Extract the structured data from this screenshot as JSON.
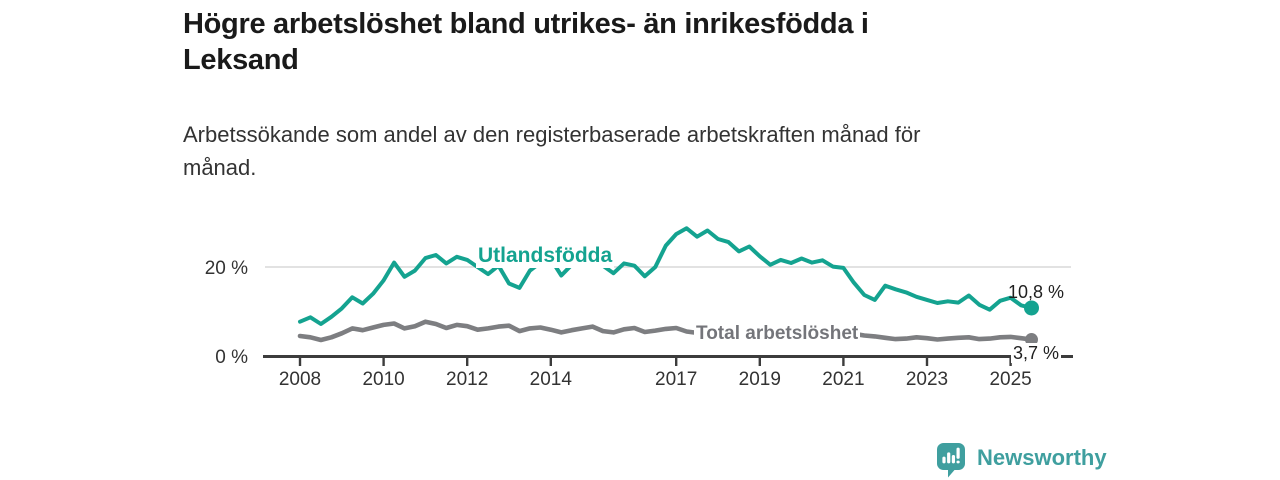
{
  "chart_data": {
    "type": "line",
    "title": "Högre arbetslöshet bland utrikes- än inrikesfödda i Leksand",
    "title_lines": [
      "Högre arbetslöshet bland utrikes- än inrikesfödda i",
      "Leksand"
    ],
    "subtitle": "Arbetssökande som andel av den registerbaserade arbetskraften månad för månad.",
    "subtitle_lines": [
      "Arbetssökande som andel av den registerbaserade arbetskraften månad för",
      "månad."
    ],
    "xlabel": "",
    "ylabel": "",
    "x_unit": "decimal year (monthly series, sampled quarterly)",
    "x_ticks": [
      2008,
      2010,
      2012,
      2014,
      2017,
      2019,
      2021,
      2023,
      2025
    ],
    "y_ticks": [
      {
        "value": 20,
        "label": "20 %"
      },
      {
        "value": 0,
        "label": "0 %"
      }
    ],
    "xlim": [
      2007.1,
      2026.5
    ],
    "ylim": [
      0,
      30
    ],
    "grid": "single horizontal gridline at 20 %",
    "legend_position": "inline labels on lines",
    "x": [
      2008,
      2008.25,
      2008.5,
      2008.75,
      2009,
      2009.25,
      2009.5,
      2009.75,
      2010,
      2010.25,
      2010.5,
      2010.75,
      2011,
      2011.25,
      2011.5,
      2011.75,
      2012,
      2012.25,
      2012.5,
      2012.75,
      2013,
      2013.25,
      2013.5,
      2013.75,
      2014,
      2014.25,
      2014.5,
      2014.75,
      2015,
      2015.25,
      2015.5,
      2015.75,
      2016,
      2016.25,
      2016.5,
      2016.75,
      2017,
      2017.25,
      2017.5,
      2017.75,
      2018,
      2018.25,
      2018.5,
      2018.75,
      2019,
      2019.25,
      2019.5,
      2019.75,
      2020,
      2020.25,
      2020.5,
      2020.75,
      2021,
      2021.25,
      2021.5,
      2021.75,
      2022,
      2022.25,
      2022.5,
      2022.75,
      2023,
      2023.25,
      2023.5,
      2023.75,
      2024,
      2024.25,
      2024.5,
      2024.75,
      2025,
      2025.25,
      2025.5
    ],
    "series": [
      {
        "name": "Utlandsfödda",
        "color": "#14a390",
        "end_label": "10,8 %",
        "end_value": 10.8,
        "values": [
          7.7,
          8.7,
          7.2,
          8.8,
          10.7,
          13.2,
          11.8,
          14.0,
          17.0,
          21.0,
          17.8,
          19.2,
          22.0,
          22.7,
          20.8,
          22.3,
          21.6,
          20.0,
          18.4,
          20.3,
          16.3,
          15.3,
          19.2,
          21.0,
          21.8,
          18.1,
          20.5,
          21.3,
          21.8,
          20.3,
          18.6,
          20.8,
          20.3,
          17.9,
          20.0,
          24.8,
          27.4,
          28.7,
          26.8,
          28.2,
          26.3,
          25.6,
          23.5,
          24.6,
          22.4,
          20.5,
          21.6,
          20.9,
          21.9,
          21.0,
          21.5,
          20.1,
          19.8,
          16.5,
          13.7,
          12.6,
          15.8,
          15.0,
          14.3,
          13.3,
          12.6,
          11.9,
          12.3,
          12.0,
          13.6,
          11.5,
          10.4,
          12.4,
          13.1,
          11.4,
          10.8
        ]
      },
      {
        "name": "Total arbetslöshet",
        "color": "#7d7e81",
        "label_color": "#74757a",
        "end_label": "3,7 %",
        "end_value": 3.7,
        "values": [
          4.5,
          4.2,
          3.6,
          4.2,
          5.1,
          6.2,
          5.8,
          6.4,
          7.0,
          7.3,
          6.2,
          6.7,
          7.7,
          7.2,
          6.3,
          7.0,
          6.7,
          5.9,
          6.2,
          6.6,
          6.8,
          5.6,
          6.2,
          6.4,
          5.9,
          5.3,
          5.8,
          6.2,
          6.6,
          5.6,
          5.3,
          6.0,
          6.3,
          5.4,
          5.7,
          6.1,
          6.3,
          5.5,
          5.2,
          5.6,
          5.4,
          5.0,
          4.8,
          5.2,
          4.7,
          4.6,
          4.9,
          5.1,
          5.3,
          6.1,
          6.3,
          5.7,
          5.6,
          5.0,
          4.6,
          4.4,
          4.1,
          3.8,
          3.9,
          4.2,
          4.0,
          3.7,
          3.9,
          4.1,
          4.2,
          3.8,
          3.9,
          4.2,
          4.3,
          4.0,
          3.7
        ]
      }
    ],
    "style": {
      "axis_color": "#3c3c3c",
      "grid_color": "#d9d9d9",
      "tick_label_color": "#333333"
    }
  },
  "footer": {
    "brand": "Newsworthy",
    "brand_color": "#3f9f9f",
    "logo_icon": "bar-chart-speech-bubble"
  }
}
